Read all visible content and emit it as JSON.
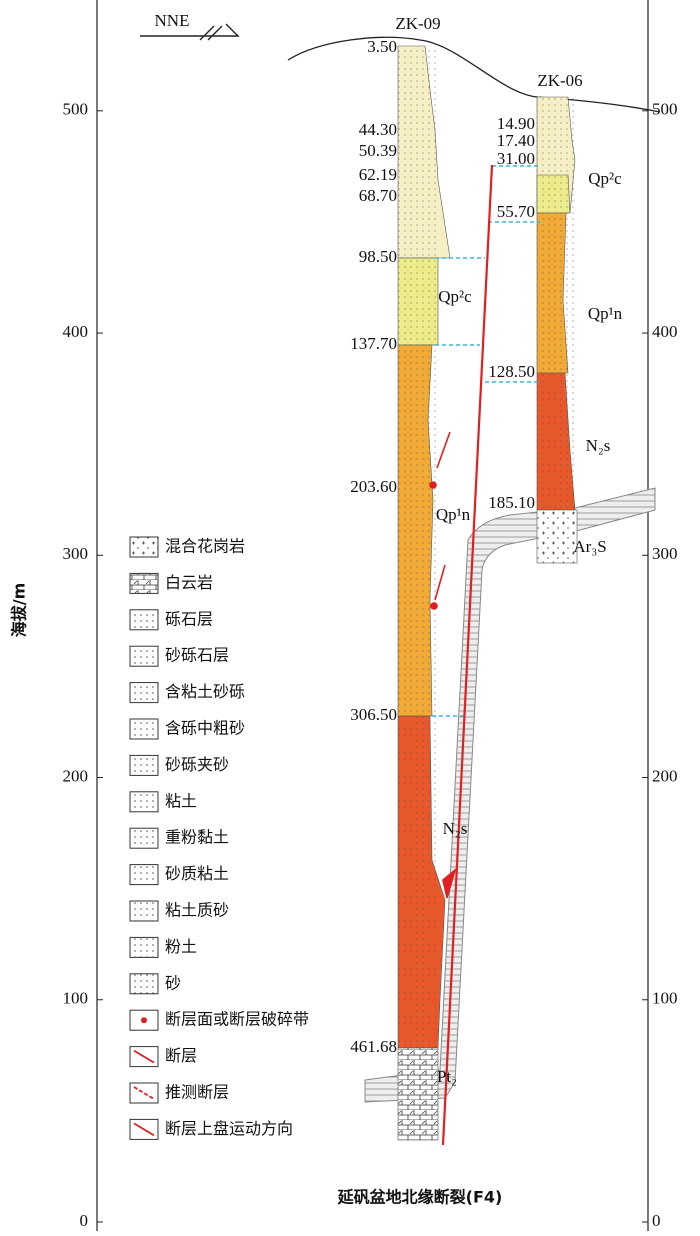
{
  "header": {
    "direction": "NNE"
  },
  "axis": {
    "label": "海拔/m",
    "yticks": [
      0,
      100,
      200,
      300,
      400,
      500
    ]
  },
  "boreholes": [
    {
      "name": "ZK-09",
      "depths": [
        "3.50",
        "44.30",
        "50.39",
        "62.19",
        "68.70",
        "98.50",
        "137.70",
        "203.60",
        "306.50",
        "461.68"
      ]
    },
    {
      "name": "ZK-06",
      "depths": [
        "14.90",
        "17.40",
        "31.00",
        "55.70",
        "128.50",
        "185.10"
      ]
    }
  ],
  "units": [
    "Qp²c",
    "Qp¹n",
    "N₂s",
    "Qp²c",
    "Qp¹n",
    "N₂s",
    "Ar₃S",
    "Pt₂"
  ],
  "legend": [
    "混合花岗岩",
    "白云岩",
    "砾石层",
    "砂砾石层",
    "含粘土砂砾",
    "含砾中粗砂",
    "砂砾夹砂",
    "粘土",
    "重粉黏土",
    "砂质粘土",
    "粘土质砂",
    "粉土",
    "砂",
    "断层面或断层破碎带",
    "断层",
    "推测断层",
    "断层上盘运动方向"
  ],
  "caption": "延矾盆地北缘断裂(F4)"
}
